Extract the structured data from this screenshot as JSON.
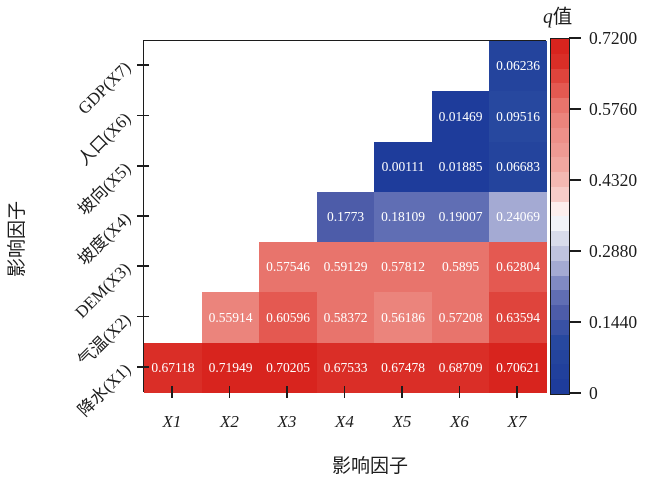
{
  "chart_data": {
    "type": "heatmap",
    "title": "",
    "xlabel": "影响因子",
    "ylabel": "影响因子",
    "x_categories": [
      "X1",
      "X2",
      "X3",
      "X4",
      "X5",
      "X6",
      "X7"
    ],
    "y_categories_top_to_bottom": [
      "GDP(X7)",
      "人口(X6)",
      "坡向(X5)",
      "坡度(X4)",
      "DEM(X3)",
      "气温(X2)",
      "降水(X1)"
    ],
    "rows": [
      {
        "label": "GDP(X7)",
        "values": [
          null,
          null,
          null,
          null,
          null,
          null,
          "0.06236"
        ]
      },
      {
        "label": "人口(X6)",
        "values": [
          null,
          null,
          null,
          null,
          null,
          "0.01469",
          "0.09516"
        ]
      },
      {
        "label": "坡向(X5)",
        "values": [
          null,
          null,
          null,
          null,
          "0.00111",
          "0.01885",
          "0.06683"
        ]
      },
      {
        "label": "坡度(X4)",
        "values": [
          null,
          null,
          null,
          "0.1773",
          "0.18109",
          "0.19007",
          "0.24069"
        ]
      },
      {
        "label": "DEM(X3)",
        "values": [
          null,
          null,
          "0.57546",
          "0.59129",
          "0.57812",
          "0.5895",
          "0.62804"
        ]
      },
      {
        "label": "气温(X2)",
        "values": [
          null,
          "0.55914",
          "0.60596",
          "0.58372",
          "0.56186",
          "0.57208",
          "0.63594"
        ]
      },
      {
        "label": "降水(X1)",
        "values": [
          "0.67118",
          "0.71949",
          "0.70205",
          "0.67533",
          "0.67478",
          "0.68709",
          "0.70621"
        ]
      }
    ],
    "grid": false,
    "legend_position": "right",
    "colorbar": {
      "title_var": "q",
      "title_suffix": "值",
      "min": 0,
      "max": 0.72,
      "tick_labels": [
        "0.7200",
        "0.5760",
        "0.4320",
        "0.2880",
        "0.1440",
        "0"
      ],
      "steps": 24,
      "gradient_stops": [
        [
          0.0,
          "#1c3a9a"
        ],
        [
          0.15,
          "#27489f"
        ],
        [
          0.23,
          "#4d5ca9"
        ],
        [
          0.28,
          "#6472b7"
        ],
        [
          0.36,
          "#a9aed5"
        ],
        [
          0.44,
          "#dadcec"
        ],
        [
          0.5,
          "#ffffff"
        ],
        [
          0.57,
          "#f5c6c1"
        ],
        [
          0.66,
          "#f0a19a"
        ],
        [
          0.75,
          "#ec8b84"
        ],
        [
          0.81,
          "#e8766e"
        ],
        [
          0.85,
          "#e45b53"
        ],
        [
          0.89,
          "#e0473f"
        ],
        [
          0.94,
          "#da2d26"
        ],
        [
          1.0,
          "#d71f19"
        ]
      ]
    }
  }
}
